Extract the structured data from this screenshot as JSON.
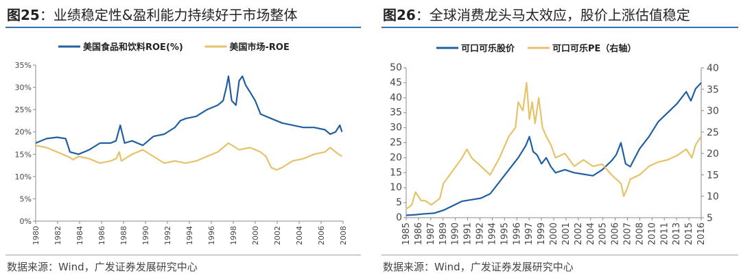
{
  "left": {
    "figure_label": "图25",
    "title": "业绩稳定性&盈利能力持续好于市场整体",
    "source": "数据来源：Wind，广发证券发展研究中心"
  },
  "right": {
    "figure_label": "图26",
    "title": "全球消费龙头马太效应，股价上涨估值稳定",
    "source": "数据来源：Wind，广发证券发展研究中心"
  },
  "colors": {
    "blue": "#1f5f9f",
    "gold": "#e6c268",
    "rule": "#2f6fb3"
  },
  "chart_data": [
    {
      "type": "line",
      "title": "",
      "xlabel": "",
      "ylabel": "",
      "ylim": [
        0,
        35
      ],
      "yticks": [
        "0%",
        "5%",
        "10%",
        "15%",
        "20%",
        "25%",
        "30%",
        "35%"
      ],
      "xlim": [
        1980,
        2008.7
      ],
      "xticks": [
        "1980",
        "1982",
        "1984",
        "1986",
        "1988",
        "1990",
        "1992",
        "1994",
        "1996",
        "1998",
        "2000",
        "2002",
        "2004",
        "2006",
        "2008"
      ],
      "legend_position": "top",
      "series": [
        {
          "name": "美国食品和饮料ROE(%)",
          "color": "#1f5f9f",
          "x": [
            1980,
            1981,
            1982,
            1982.8,
            1983.2,
            1984,
            1985,
            1986,
            1987,
            1987.5,
            1987.9,
            1988.3,
            1989,
            1990,
            1991,
            1992,
            1993,
            1993.5,
            1994,
            1995,
            1996,
            1997,
            1997.5,
            1997.8,
            1998,
            1998.3,
            1998.7,
            1999,
            1999.3,
            1999.6,
            2000,
            2000.5,
            2001,
            2002,
            2003,
            2004,
            2005,
            2006,
            2007,
            2007.5,
            2008,
            2008.4,
            2008.6
          ],
          "y": [
            17.5,
            18.5,
            18.8,
            18.5,
            15.5,
            15,
            16,
            17.5,
            17.5,
            18,
            21.5,
            17.5,
            18,
            17,
            19,
            19.5,
            21,
            22.5,
            23,
            23.5,
            25,
            26,
            27,
            30,
            32.5,
            27,
            26,
            31.5,
            32.5,
            30.5,
            29,
            27,
            24,
            23,
            22,
            21.5,
            21,
            21,
            20.5,
            19.5,
            20,
            21.5,
            20
          ]
        },
        {
          "name": "美国市场-ROE",
          "color": "#e6c268",
          "x": [
            1980,
            1981,
            1982,
            1983,
            1983.5,
            1984,
            1985,
            1986,
            1987,
            1987.5,
            1987.8,
            1988,
            1989,
            1990,
            1991,
            1992,
            1993,
            1994,
            1995,
            1996,
            1997,
            1997.5,
            1998,
            1999,
            2000,
            2001,
            2001.5,
            2002,
            2002.5,
            2003,
            2004,
            2005,
            2006,
            2007,
            2007.5,
            2008,
            2008.6
          ],
          "y": [
            17,
            16.5,
            15.5,
            14.5,
            13.8,
            14.5,
            14,
            13,
            13.5,
            14,
            15.5,
            13.5,
            15,
            16,
            14.5,
            13,
            13.5,
            13,
            13.5,
            14.5,
            15.5,
            16.5,
            17.5,
            16,
            16.5,
            15.5,
            14.5,
            12,
            11.5,
            12,
            13.5,
            14,
            15,
            15.5,
            16.5,
            15.5,
            14.5
          ]
        }
      ]
    },
    {
      "type": "line",
      "title": "",
      "xlabel": "",
      "ylabel": "",
      "ylim": [
        0,
        50
      ],
      "y2lim": [
        5,
        40
      ],
      "yticks": [
        "0",
        "5",
        "10",
        "15",
        "20",
        "25",
        "30",
        "35",
        "40",
        "45",
        "50"
      ],
      "y2ticks": [
        "5",
        "10",
        "15",
        "20",
        "25",
        "30",
        "35",
        "40"
      ],
      "xlim": [
        1985,
        2016.6
      ],
      "xticks": [
        "1985",
        "1986",
        "1987",
        "1989",
        "1990",
        "1991",
        "1992",
        "1994",
        "1995",
        "1996",
        "1997",
        "1999",
        "2000",
        "2001",
        "2002",
        "2004",
        "2005",
        "2006",
        "2007",
        "2008",
        "2010",
        "2011",
        "2013",
        "2015",
        "2016"
      ],
      "legend_position": "top",
      "series": [
        {
          "name": "可口可乐股价",
          "axis": "left",
          "color": "#1f5f9f",
          "x": [
            1985,
            1986,
            1987,
            1988,
            1989,
            1990,
            1991,
            1992,
            1993,
            1994,
            1995,
            1996,
            1997,
            1997.8,
            1998.2,
            1998.6,
            1999,
            1999.5,
            2000,
            2000.5,
            2001,
            2002,
            2003,
            2004,
            2005,
            2006,
            2007,
            2007.5,
            2008,
            2008.5,
            2009,
            2009.5,
            2010,
            2011,
            2012,
            2013,
            2014,
            2015,
            2015.5,
            2016,
            2016.6
          ],
          "y": [
            0.8,
            1,
            1.3,
            1.5,
            2.5,
            4,
            5.5,
            6,
            6.5,
            8,
            12,
            16,
            20,
            24,
            27,
            22,
            21,
            18,
            20,
            17,
            15,
            16,
            15,
            14.5,
            14,
            16,
            19,
            21,
            25,
            18,
            17,
            20,
            23,
            27,
            32,
            35,
            38,
            42,
            39,
            43,
            45
          ]
        },
        {
          "name": "可口可乐PE（右轴）",
          "axis": "right",
          "color": "#e6c268",
          "x": [
            1985,
            1985.6,
            1986,
            1986.6,
            1987,
            1987.7,
            1988,
            1988.6,
            1989,
            1990,
            1991,
            1991.5,
            1992,
            1993,
            1994,
            1995,
            1996,
            1996.7,
            1997,
            1997.5,
            1997.9,
            1998.2,
            1998.5,
            1998.8,
            1999.2,
            1999.6,
            2000,
            2000.5,
            2001,
            2002,
            2003,
            2004,
            2005,
            2006,
            2006.6,
            2007,
            2007.5,
            2008,
            2008.3,
            2008.7,
            2009,
            2010,
            2011,
            2012,
            2013,
            2014,
            2015,
            2015.6,
            2016,
            2016.6
          ],
          "y": [
            7,
            8,
            11,
            9,
            9,
            8,
            8.5,
            9.5,
            13,
            16,
            19,
            21,
            19,
            17,
            15,
            19,
            24,
            26,
            32,
            30,
            36.5,
            28,
            32,
            27,
            33,
            26,
            24,
            22,
            19,
            20,
            17,
            18.5,
            17,
            17.5,
            16,
            15,
            14,
            13,
            10,
            12,
            14,
            15,
            17,
            18,
            18.5,
            19.5,
            21,
            19,
            22,
            24
          ]
        }
      ]
    }
  ]
}
